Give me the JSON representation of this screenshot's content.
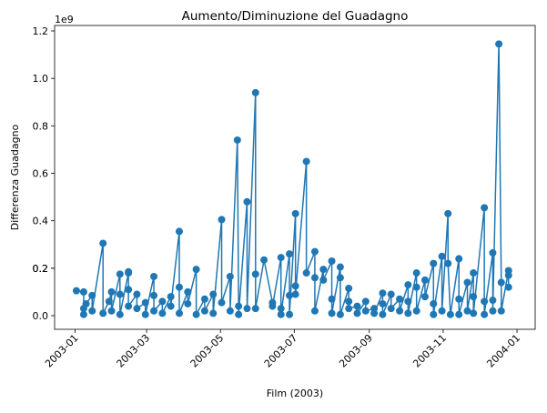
{
  "chart_data": {
    "type": "line",
    "title": "Aumento/Diminuzione del Guadagno",
    "xlabel": "Film (2003)",
    "ylabel": "Differenza Guadagno",
    "y_offset_label": "1e9",
    "color": "#1f77b4",
    "marker": true,
    "x": [
      "2003-01-02",
      "2003-01-08",
      "2003-01-08",
      "2003-01-08",
      "2003-01-10",
      "2003-01-15",
      "2003-01-15",
      "2003-01-24",
      "2003-01-24",
      "2003-01-29",
      "2003-01-31",
      "2003-01-31",
      "2003-02-07",
      "2003-02-07",
      "2003-02-07",
      "2003-02-14",
      "2003-02-14",
      "2003-02-14",
      "2003-02-14",
      "2003-02-21",
      "2003-02-21",
      "2003-02-28",
      "2003-02-28",
      "2003-03-07",
      "2003-03-07",
      "2003-03-07",
      "2003-03-14",
      "2003-03-14",
      "2003-03-21",
      "2003-03-21",
      "2003-03-28",
      "2003-03-28",
      "2003-03-28",
      "2003-04-04",
      "2003-04-04",
      "2003-04-11",
      "2003-04-11",
      "2003-04-18",
      "2003-04-18",
      "2003-04-25",
      "2003-04-25",
      "2003-05-02",
      "2003-05-02",
      "2003-05-09",
      "2003-05-09",
      "2003-05-15",
      "2003-05-16",
      "2003-05-16",
      "2003-05-23",
      "2003-05-23",
      "2003-05-30",
      "2003-05-30",
      "2003-05-30",
      "2003-06-06",
      "2003-06-13",
      "2003-06-13",
      "2003-06-20",
      "2003-06-20",
      "2003-06-20",
      "2003-06-27",
      "2003-06-27",
      "2003-06-27",
      "2003-07-02",
      "2003-07-02",
      "2003-07-02",
      "2003-07-11",
      "2003-07-11",
      "2003-07-18",
      "2003-07-18",
      "2003-07-18",
      "2003-07-25",
      "2003-07-25",
      "2003-08-01",
      "2003-08-01",
      "2003-08-01",
      "2003-08-08",
      "2003-08-08",
      "2003-08-08",
      "2003-08-15",
      "2003-08-15",
      "2003-08-15",
      "2003-08-22",
      "2003-08-22",
      "2003-08-29",
      "2003-08-29",
      "2003-09-05",
      "2003-09-05",
      "2003-09-12",
      "2003-09-12",
      "2003-09-12",
      "2003-09-19",
      "2003-09-19",
      "2003-09-26",
      "2003-09-26",
      "2003-10-03",
      "2003-10-03",
      "2003-10-03",
      "2003-10-10",
      "2003-10-10",
      "2003-10-10",
      "2003-10-17",
      "2003-10-17",
      "2003-10-24",
      "2003-10-24",
      "2003-10-24",
      "2003-10-31",
      "2003-10-31",
      "2003-11-05",
      "2003-11-05",
      "2003-11-07",
      "2003-11-14",
      "2003-11-14",
      "2003-11-14",
      "2003-11-21",
      "2003-11-21",
      "2003-11-26",
      "2003-11-26",
      "2003-11-26",
      "2003-12-05",
      "2003-12-05",
      "2003-12-05",
      "2003-12-12",
      "2003-12-12",
      "2003-12-12",
      "2003-12-17",
      "2003-12-19",
      "2003-12-19",
      "2003-12-25",
      "2003-12-25",
      "2003-12-25"
    ],
    "values": [
      0.105,
      0.1,
      0.03,
      0.005,
      0.05,
      0.085,
      0.02,
      0.305,
      0.01,
      0.06,
      0.1,
      0.02,
      0.175,
      0.09,
      0.005,
      0.18,
      0.185,
      0.11,
      0.04,
      0.09,
      0.03,
      0.055,
      0.005,
      0.165,
      0.085,
      0.02,
      0.06,
      0.01,
      0.08,
      0.04,
      0.355,
      0.12,
      0.01,
      0.1,
      0.05,
      0.195,
      0.005,
      0.07,
      0.02,
      0.09,
      0.01,
      0.405,
      0.055,
      0.165,
      0.02,
      0.74,
      0.04,
      0.005,
      0.48,
      0.03,
      0.94,
      0.175,
      0.03,
      0.235,
      0.055,
      0.04,
      0.245,
      0.03,
      0.005,
      0.26,
      0.085,
      0.005,
      0.43,
      0.125,
      0.09,
      0.65,
      0.18,
      0.27,
      0.16,
      0.02,
      0.195,
      0.15,
      0.23,
      0.07,
      0.01,
      0.205,
      0.16,
      0.005,
      0.115,
      0.06,
      0.03,
      0.04,
      0.01,
      0.06,
      0.02,
      0.03,
      0.01,
      0.095,
      0.05,
      0.005,
      0.09,
      0.03,
      0.07,
      0.02,
      0.13,
      0.06,
      0.01,
      0.18,
      0.12,
      0.02,
      0.15,
      0.08,
      0.22,
      0.05,
      0.005,
      0.25,
      0.02,
      0.43,
      0.22,
      0.005,
      0.24,
      0.07,
      0.005,
      0.14,
      0.02,
      0.18,
      0.08,
      0.01,
      0.455,
      0.06,
      0.005,
      0.265,
      0.065,
      0.02,
      1.145,
      0.14,
      0.02,
      0.19,
      0.17,
      0.12
    ],
    "xlim": [
      "2002-12-15",
      "2004-01-16"
    ],
    "xticks": [
      {
        "value": "2003-01-01",
        "label": "2003-01"
      },
      {
        "value": "2003-03-01",
        "label": "2003-03"
      },
      {
        "value": "2003-05-01",
        "label": "2003-05"
      },
      {
        "value": "2003-07-01",
        "label": "2003-07"
      },
      {
        "value": "2003-09-01",
        "label": "2003-09"
      },
      {
        "value": "2003-11-01",
        "label": "2003-11"
      },
      {
        "value": "2004-01-01",
        "label": "2004-01"
      }
    ],
    "ylim": [
      -0.0575,
      1.223
    ],
    "yticks": [
      {
        "value": 0,
        "label": "0.0"
      },
      0.2,
      0.4,
      0.6,
      0.8,
      {
        "value": 1,
        "label": "1.0"
      },
      0.2,
      1.2
    ]
  }
}
